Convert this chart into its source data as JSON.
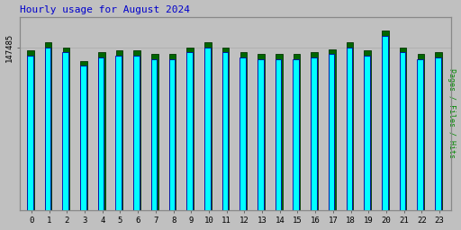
{
  "title": "Hourly usage for August 2024",
  "title_color": "#0000cc",
  "title_fontsize": 8,
  "ylabel": "Pages / Files / Hits",
  "ylabel_color": "#008800",
  "background_color": "#c0c0c0",
  "plot_bg_color": "#c0c0c0",
  "hours": [
    0,
    1,
    2,
    3,
    4,
    5,
    6,
    7,
    8,
    9,
    10,
    11,
    12,
    13,
    14,
    15,
    16,
    17,
    18,
    19,
    20,
    21,
    22,
    23
  ],
  "hits_values": [
    95,
    100,
    97,
    89,
    94,
    95,
    95,
    93,
    93,
    97,
    100,
    97,
    94,
    93,
    93,
    93,
    94,
    96,
    100,
    95,
    107,
    97,
    93,
    94
  ],
  "pages_values": [
    92,
    97,
    94,
    86,
    91,
    92,
    92,
    90,
    90,
    94,
    97,
    94,
    91,
    90,
    90,
    90,
    91,
    93,
    97,
    92,
    104,
    94,
    90,
    91
  ],
  "ylim_min": 0,
  "ylim_max": 115,
  "ytick_label": "147485",
  "ytick_value": 97,
  "bar_width": 0.35,
  "cyan_color": "#00ffff",
  "green_color": "#006600",
  "cyan_edge": "#0000aa",
  "green_edge": "#003300",
  "grid_color": "#aaaaaa",
  "axis_color": "#000000",
  "tick_fontsize": 6.5,
  "border_color": "#888888"
}
